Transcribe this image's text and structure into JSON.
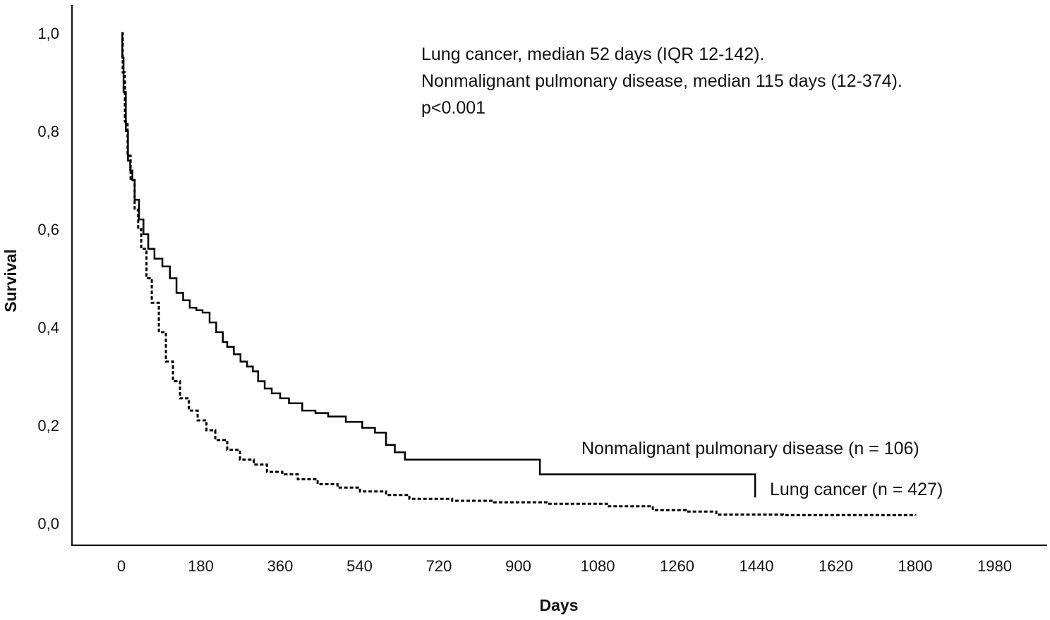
{
  "chart_data": {
    "type": "line",
    "subtype": "kaplan-meier-step",
    "title": "",
    "xlabel": "Days",
    "ylabel": "Survival",
    "xlim": [
      0,
      1980
    ],
    "ylim": [
      0,
      1.0
    ],
    "x_ticks": [
      0,
      180,
      360,
      540,
      720,
      900,
      1080,
      1260,
      1440,
      1620,
      1800,
      1980
    ],
    "x_tick_labels": [
      "0",
      "180",
      "360",
      "540",
      "720",
      "900",
      "1080",
      "1260",
      "1440",
      "1620",
      "1800",
      "1980"
    ],
    "y_ticks": [
      0.0,
      0.2,
      0.4,
      0.6,
      0.8,
      1.0
    ],
    "y_tick_labels": [
      "0,0",
      "0,2",
      "0,4",
      "0,6",
      "0,8",
      "1,0"
    ],
    "grid": false,
    "annotations": [
      "Lung cancer, median 52 days (IQR 12-142).",
      "Nonmalignant pulmonary disease, median 115 days (12-374).",
      "p<0.001"
    ],
    "series": [
      {
        "name": "Nonmalignant pulmonary disease (n = 106)",
        "style": "solid",
        "color": "#000000",
        "x": [
          0,
          2,
          5,
          10,
          15,
          20,
          25,
          30,
          40,
          50,
          61,
          75,
          93,
          110,
          125,
          140,
          155,
          170,
          184,
          200,
          215,
          230,
          240,
          255,
          270,
          285,
          298,
          310,
          325,
          341,
          360,
          380,
          410,
          440,
          469,
          509,
          546,
          575,
          600,
          620,
          643,
          949,
          1437
        ],
        "y": [
          1.0,
          0.95,
          0.88,
          0.8,
          0.74,
          0.72,
          0.7,
          0.66,
          0.62,
          0.59,
          0.56,
          0.54,
          0.524,
          0.5,
          0.47,
          0.455,
          0.44,
          0.435,
          0.43,
          0.41,
          0.39,
          0.37,
          0.36,
          0.345,
          0.33,
          0.32,
          0.31,
          0.29,
          0.275,
          0.265,
          0.255,
          0.245,
          0.23,
          0.225,
          0.218,
          0.207,
          0.195,
          0.185,
          0.16,
          0.145,
          0.13,
          0.1,
          0.053
        ]
      },
      {
        "name": "Lung cancer (n = 427)",
        "style": "dotted",
        "color": "#000000",
        "x": [
          0,
          3,
          8,
          14,
          21,
          30,
          38,
          45,
          57,
          69,
          85,
          101,
          117,
          133,
          153,
          173,
          193,
          213,
          240,
          269,
          300,
          330,
          365,
          400,
          445,
          490,
          541,
          600,
          653,
          750,
          845,
          970,
          1101,
          1205,
          1280,
          1349,
          1500,
          1650,
          1800
        ],
        "y": [
          1.0,
          0.92,
          0.82,
          0.75,
          0.7,
          0.64,
          0.6,
          0.56,
          0.5,
          0.45,
          0.39,
          0.33,
          0.29,
          0.255,
          0.23,
          0.21,
          0.19,
          0.17,
          0.15,
          0.13,
          0.12,
          0.105,
          0.1,
          0.09,
          0.08,
          0.073,
          0.065,
          0.058,
          0.05,
          0.046,
          0.043,
          0.04,
          0.035,
          0.027,
          0.024,
          0.018,
          0.017,
          0.017,
          0.016
        ]
      }
    ],
    "series_labels": [
      "Nonmalignant pulmonary disease (n = 106)",
      "Lung cancer (n = 427)"
    ]
  }
}
